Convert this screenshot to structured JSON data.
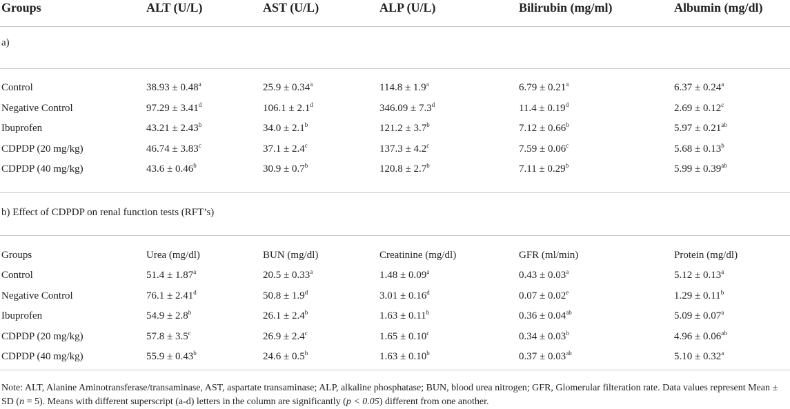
{
  "table": {
    "header": [
      "Groups",
      "ALT (U/L)",
      "AST (U/L)",
      "ALP (U/L)",
      "Bilirubin (mg/ml)",
      "Albumin (mg/dl)"
    ],
    "section_a": {
      "title": "a)",
      "rows": [
        [
          "Control",
          "38.93 ± 0.48",
          "a",
          "25.9 ± 0.34",
          "a",
          "114.8 ± 1.9",
          "a",
          "6.79 ± 0.21",
          "a",
          "6.37 ± 0.24",
          "a"
        ],
        [
          "Negative Control",
          "97.29 ± 3.41",
          "d",
          "106.1 ± 2.1",
          "d",
          "346.09 ± 7.3",
          "d",
          "11.4 ± 0.19",
          "d",
          "2.69 ± 0.12",
          "c"
        ],
        [
          "Ibuprofen",
          "43.21 ± 2.43",
          "b",
          "34.0 ± 2.1",
          "b",
          "121.2 ± 3.7",
          "b",
          "7.12 ± 0.66",
          "b",
          "5.97 ± 0.21",
          "ab"
        ],
        [
          "CDPDP (20 mg/kg)",
          "46.74 ± 3.83",
          "c",
          "37.1 ± 2.4",
          "c",
          "137.3 ± 4.2",
          "c",
          "7.59 ± 0.06",
          "c",
          "5.68 ± 0.13",
          "b"
        ],
        [
          "CDPDP (40 mg/kg)",
          "43.6 ± 0.46",
          "b",
          "30.9 ± 0.7",
          "b",
          "120.8 ± 2.7",
          "b",
          "7.11 ± 0.29",
          "b",
          "5.99 ± 0.39",
          "ab"
        ]
      ]
    },
    "section_b": {
      "title": "b) Effect of CDPDP on renal function tests (RFT’s)",
      "header": [
        "Groups",
        "Urea (mg/dl)",
        "BUN (mg/dl)",
        "Creatinine (mg/dl)",
        "GFR (ml/min)",
        "Protein (mg/dl)"
      ],
      "rows": [
        [
          "Control",
          "51.4 ± 1.87",
          "a",
          "20.5 ± 0.33",
          "a",
          "1.48 ± 0.09",
          "a",
          "0.43 ± 0.03",
          "a",
          "5.12 ± 0.13",
          "a"
        ],
        [
          "Negative Control",
          "76.1 ± 2.41",
          "d",
          "50.8 ± 1.9",
          "d",
          "3.01 ± 0.16",
          "d",
          "0.07 ± 0.02",
          "e",
          "1.29 ± 0.11",
          "b"
        ],
        [
          "Ibuprofen",
          "54.9 ± 2.8",
          "b",
          "26.1 ± 2.4",
          "b",
          "1.63 ± 0.11",
          "b",
          "0.36 ± 0.04",
          "ab",
          "5.09 ± 0.07",
          "a"
        ],
        [
          "CDPDP (20 mg/kg)",
          "57.8 ± 3.5",
          "c",
          "26.9 ± 2.4",
          "c",
          "1.65 ± 0.10",
          "c",
          "0.34 ± 0.03",
          "b",
          "4.96 ± 0.06",
          "ab"
        ],
        [
          "CDPDP (40 mg/kg)",
          "55.9 ± 0.43",
          "b",
          "24.6 ± 0.5",
          "b",
          "1.63 ± 0.10",
          "b",
          "0.37 ± 0.03",
          "ab",
          "5.10 ± 0.32",
          "a"
        ]
      ]
    }
  },
  "note": {
    "part1": "Note: ALT, Alanine Aminotransferase/transaminase, AST, aspartate transaminase; ALP, alkaline phosphatase; BUN, blood urea nitrogen; GFR, Glomerular filteration rate. Data values represent Mean ± SD (",
    "n": "n",
    "part2": " = 5). Means with different superscript (a-d) letters in the column are significantly (",
    "p": "p < 0.05",
    "part3": ") different from one another."
  }
}
